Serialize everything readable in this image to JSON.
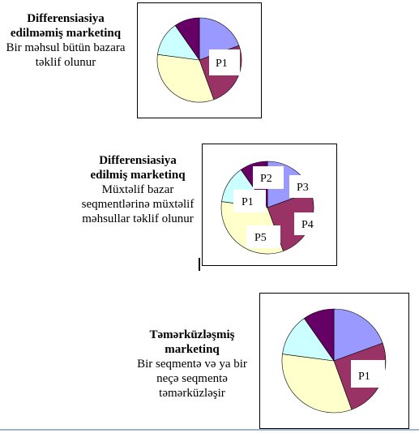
{
  "colors": {
    "slice_blue": "#9999ff",
    "slice_maroon": "#993366",
    "slice_yellow": "#ffffcc",
    "slice_cyan": "#ccffff",
    "slice_purple": "#660066",
    "outline": "#000000"
  },
  "panels": [
    {
      "caption_title": "Differensiasiya edilməmiş marketinq",
      "caption_text": "Bir məhsul bütün bazara təklif olunur",
      "labels": [
        "P1"
      ]
    },
    {
      "caption_title": "Differensiasiya edilmiş marketinq",
      "caption_text": "Müxtəlif bazar seqmentlərinə müxtəlif məhsullar təklif olunur",
      "labels": [
        "P2",
        "P3",
        "P1",
        "P4",
        "P5"
      ]
    },
    {
      "caption_title": "Təmərküzləşmiş marketinq",
      "caption_text": "Bir seqmentə və ya bir neçə seqmentə təmərküzləşir",
      "labels": [
        "P1"
      ]
    }
  ]
}
